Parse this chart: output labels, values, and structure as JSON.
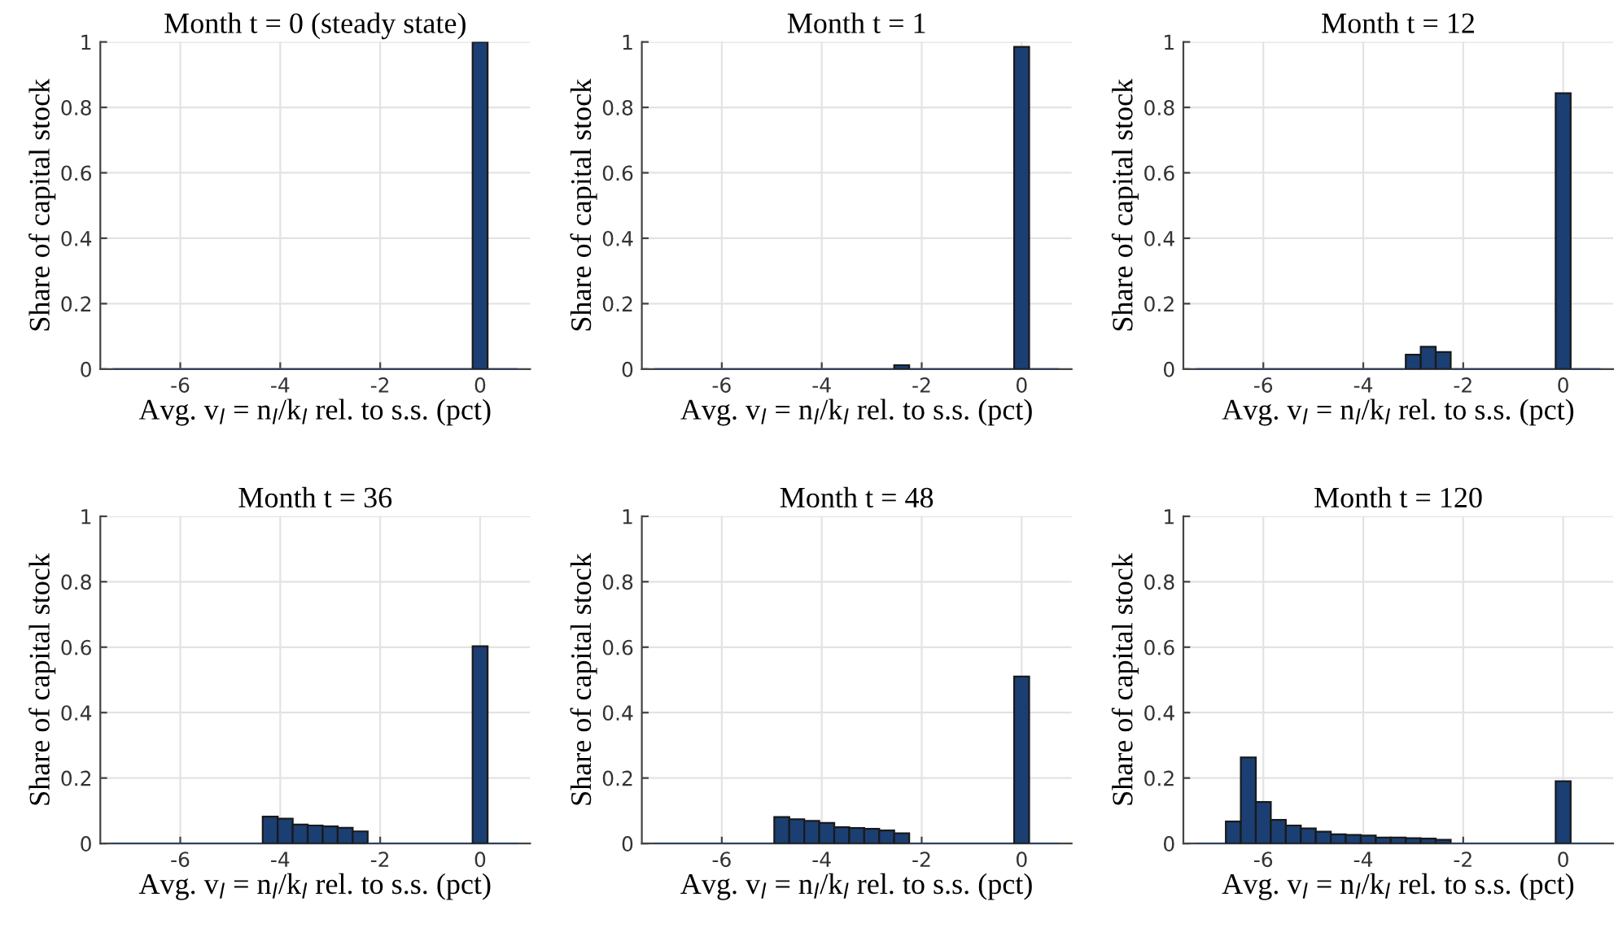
{
  "chart_data": [
    {
      "type": "histogram",
      "title": "Month t = 0 (steady state)",
      "xlabel": "Avg. v$_{l}$ = n$_{l}$/k$_{l}$ rel. to s.s. (pct)",
      "ylabel": "Share of capital stock",
      "color": "#1b3f73",
      "grid": true,
      "xlim": [
        -7.6,
        1
      ],
      "xticks": [
        -6,
        -4,
        -2,
        0
      ],
      "ylim": [
        0,
        1
      ],
      "yticks": [
        0,
        0.2,
        0.4,
        0.6,
        0.8,
        1
      ],
      "bins": [
        -7.35,
        -7.05,
        -6.75,
        -6.45,
        -6.15,
        -5.85,
        -5.55,
        -5.25,
        -4.95,
        -4.65,
        -4.35,
        -4.05,
        -3.75,
        -3.45,
        -3.15,
        -2.85,
        -2.55,
        -2.25,
        -1.95,
        -1.65,
        -1.35,
        -1.05,
        -0.75,
        -0.45,
        -0.15,
        0.15,
        0.45,
        0.75
      ],
      "values": [
        0,
        0,
        0,
        0,
        0,
        0,
        0,
        0,
        0,
        0,
        0,
        0,
        0,
        0,
        0,
        0,
        0,
        0,
        0,
        0,
        0,
        0,
        0,
        0,
        1,
        0,
        0
      ]
    },
    {
      "type": "histogram",
      "title": "Month t = 1",
      "xlabel": "Avg. v$_{l}$ = n$_{l}$/k$_{l}$ rel. to s.s. (pct)",
      "ylabel": "Share of capital stock",
      "color": "#1b3f73",
      "grid": true,
      "xlim": [
        -7.6,
        1
      ],
      "xticks": [
        -6,
        -4,
        -2,
        0
      ],
      "ylim": [
        0,
        1
      ],
      "yticks": [
        0,
        0.2,
        0.4,
        0.6,
        0.8,
        1
      ],
      "bins": [
        -7.35,
        -7.05,
        -6.75,
        -6.45,
        -6.15,
        -5.85,
        -5.55,
        -5.25,
        -4.95,
        -4.65,
        -4.35,
        -4.05,
        -3.75,
        -3.45,
        -3.15,
        -2.85,
        -2.55,
        -2.25,
        -1.95,
        -1.65,
        -1.35,
        -1.05,
        -0.75,
        -0.45,
        -0.15,
        0.15,
        0.45,
        0.75
      ],
      "values": [
        0,
        0,
        0,
        0,
        0,
        0,
        0,
        0,
        0,
        0,
        0,
        0,
        0,
        0,
        0,
        0,
        0.012,
        0,
        0,
        0,
        0,
        0,
        0,
        0,
        0.985,
        0,
        0
      ]
    },
    {
      "type": "histogram",
      "title": "Month t = 12",
      "xlabel": "Avg. v$_{l}$ = n$_{l}$/k$_{l}$ rel. to s.s. (pct)",
      "ylabel": "Share of capital stock",
      "color": "#1b3f73",
      "grid": true,
      "xlim": [
        -7.6,
        1
      ],
      "xticks": [
        -6,
        -4,
        -2,
        0
      ],
      "ylim": [
        0,
        1
      ],
      "yticks": [
        0,
        0.2,
        0.4,
        0.6,
        0.8,
        1
      ],
      "bins": [
        -7.35,
        -7.05,
        -6.75,
        -6.45,
        -6.15,
        -5.85,
        -5.55,
        -5.25,
        -4.95,
        -4.65,
        -4.35,
        -4.05,
        -3.75,
        -3.45,
        -3.15,
        -2.85,
        -2.55,
        -2.25,
        -1.95,
        -1.65,
        -1.35,
        -1.05,
        -0.75,
        -0.45,
        -0.15,
        0.15,
        0.45,
        0.75
      ],
      "values": [
        0,
        0,
        0,
        0,
        0,
        0,
        0,
        0,
        0,
        0,
        0,
        0,
        0,
        0,
        0.044,
        0.068,
        0.052,
        0,
        0,
        0,
        0,
        0,
        0,
        0,
        0.843,
        0,
        0
      ]
    },
    {
      "type": "histogram",
      "title": "Month t = 36",
      "xlabel": "Avg. v$_{l}$ = n$_{l}$/k$_{l}$ rel. to s.s. (pct)",
      "ylabel": "Share of capital stock",
      "color": "#1b3f73",
      "grid": true,
      "xlim": [
        -7.6,
        1
      ],
      "xticks": [
        -6,
        -4,
        -2,
        0
      ],
      "ylim": [
        0,
        1
      ],
      "yticks": [
        0,
        0.2,
        0.4,
        0.6,
        0.8,
        1
      ],
      "bins": [
        -7.35,
        -7.05,
        -6.75,
        -6.45,
        -6.15,
        -5.85,
        -5.55,
        -5.25,
        -4.95,
        -4.65,
        -4.35,
        -4.05,
        -3.75,
        -3.45,
        -3.15,
        -2.85,
        -2.55,
        -2.25,
        -1.95,
        -1.65,
        -1.35,
        -1.05,
        -0.75,
        -0.45,
        -0.15,
        0.15,
        0.45,
        0.75
      ],
      "values": [
        0,
        0,
        0,
        0,
        0,
        0,
        0,
        0,
        0,
        0,
        0.082,
        0.076,
        0.058,
        0.055,
        0.052,
        0.048,
        0.037,
        0,
        0,
        0,
        0,
        0,
        0,
        0,
        0.603,
        0,
        0
      ]
    },
    {
      "type": "histogram",
      "title": "Month t = 48",
      "xlabel": "Avg. v$_{l}$ = n$_{l}$/k$_{l}$ rel. to s.s. (pct)",
      "ylabel": "Share of capital stock",
      "color": "#1b3f73",
      "grid": true,
      "xlim": [
        -7.6,
        1
      ],
      "xticks": [
        -6,
        -4,
        -2,
        0
      ],
      "ylim": [
        0,
        1
      ],
      "yticks": [
        0,
        0.2,
        0.4,
        0.6,
        0.8,
        1
      ],
      "bins": [
        -7.35,
        -7.05,
        -6.75,
        -6.45,
        -6.15,
        -5.85,
        -5.55,
        -5.25,
        -4.95,
        -4.65,
        -4.35,
        -4.05,
        -3.75,
        -3.45,
        -3.15,
        -2.85,
        -2.55,
        -2.25,
        -1.95,
        -1.65,
        -1.35,
        -1.05,
        -0.75,
        -0.45,
        -0.15,
        0.15,
        0.45,
        0.75
      ],
      "values": [
        0,
        0,
        0,
        0,
        0,
        0,
        0,
        0,
        0.081,
        0.074,
        0.069,
        0.063,
        0.05,
        0.047,
        0.045,
        0.04,
        0.031,
        0,
        0,
        0,
        0,
        0,
        0,
        0,
        0.51,
        0,
        0
      ]
    },
    {
      "type": "histogram",
      "title": "Month t = 120",
      "xlabel": "Avg. v$_{l}$ = n$_{l}$/k$_{l}$ rel. to s.s. (pct)",
      "ylabel": "Share of capital stock",
      "color": "#1b3f73",
      "grid": true,
      "xlim": [
        -7.6,
        1
      ],
      "xticks": [
        -6,
        -4,
        -2,
        0
      ],
      "ylim": [
        0,
        1
      ],
      "yticks": [
        0,
        0.2,
        0.4,
        0.6,
        0.8,
        1
      ],
      "bins": [
        -7.35,
        -7.05,
        -6.75,
        -6.45,
        -6.15,
        -5.85,
        -5.55,
        -5.25,
        -4.95,
        -4.65,
        -4.35,
        -4.05,
        -3.75,
        -3.45,
        -3.15,
        -2.85,
        -2.55,
        -2.25,
        -1.95,
        -1.65,
        -1.35,
        -1.05,
        -0.75,
        -0.45,
        -0.15,
        0.15,
        0.45,
        0.75
      ],
      "values": [
        0,
        0,
        0.067,
        0.263,
        0.127,
        0.072,
        0.055,
        0.046,
        0.036,
        0.028,
        0.026,
        0.024,
        0.018,
        0.018,
        0.016,
        0.015,
        0.011,
        0,
        0,
        0,
        0,
        0,
        0,
        0,
        0.19,
        0,
        0
      ]
    }
  ]
}
